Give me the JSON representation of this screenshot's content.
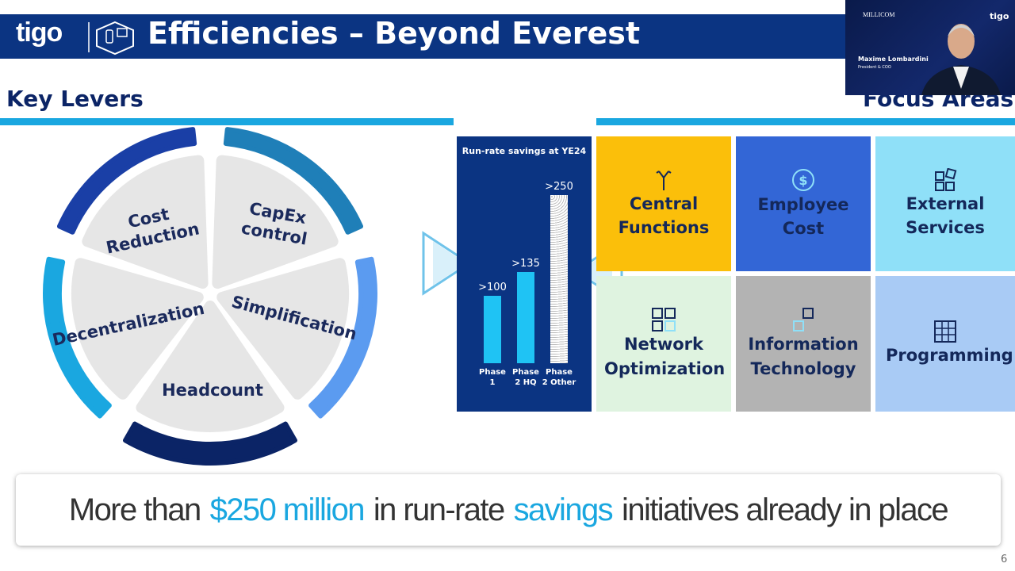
{
  "header": {
    "logo": "tigo",
    "title": "Efficiencies – Beyond Everest"
  },
  "levers": {
    "title": "Key Levers",
    "items": [
      "Cost Reduction",
      "CapEx control",
      "Simplification",
      "Headcount",
      "Decentralization"
    ]
  },
  "chart_data": {
    "type": "bar",
    "title": "Run-rate savings at YE24",
    "categories": [
      "Phase 1",
      "Phase 2 HQ",
      "Phase 2 Other"
    ],
    "values": [
      100,
      135,
      250
    ],
    "value_labels": [
      ">100",
      ">135",
      ">250"
    ]
  },
  "focus": {
    "title": "Focus Areas",
    "areas": [
      "Central Functions",
      "Employee Cost",
      "External Services",
      "Network Optimization",
      "Information Technology",
      "Programming"
    ]
  },
  "banner": {
    "parts": [
      "More than",
      "$250 million",
      "in run-rate",
      "savings",
      "initiatives already in place"
    ]
  },
  "video": {
    "logo": "MILLICOM",
    "brand": "tigo",
    "name": "Maxime Lombardini",
    "role": "President & COO"
  },
  "page_number": "6"
}
